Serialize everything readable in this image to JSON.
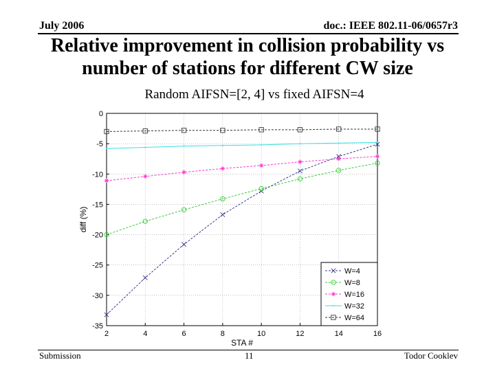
{
  "header": {
    "date": "July 2006",
    "doc_id": "doc.: IEEE 802.11-06/0657r3"
  },
  "slide": {
    "title_line1": "Relative improvement in collision probability vs",
    "title_line2": "number of stations for different CW size",
    "subtitle": "Random AIFSN=[2, 4] vs fixed AIFSN=4"
  },
  "footer": {
    "left": "Submission",
    "page": "11",
    "author": "Todor Cooklev"
  },
  "chart_data": {
    "type": "line",
    "xlabel": "STA #",
    "ylabel": "diff (%)",
    "xlim": [
      2,
      16
    ],
    "ylim": [
      -35,
      0
    ],
    "xticks": [
      2,
      4,
      6,
      8,
      10,
      12,
      14,
      16
    ],
    "yticks": [
      0,
      -5,
      -10,
      -15,
      -20,
      -25,
      -30,
      -35
    ],
    "grid": true,
    "legend_position": "bottom-right",
    "x": [
      2,
      4,
      6,
      8,
      10,
      12,
      14,
      16
    ],
    "series": [
      {
        "name": "W=4",
        "color": "#3a3a8c",
        "marker": "x",
        "values": [
          -33.2,
          -27.1,
          -21.6,
          -16.7,
          -12.8,
          -9.5,
          -7.1,
          -5.1
        ]
      },
      {
        "name": "W=8",
        "color": "#33cc33",
        "marker": "circle",
        "values": [
          -20.0,
          -17.8,
          -15.9,
          -14.1,
          -12.4,
          -10.8,
          -9.4,
          -8.2
        ]
      },
      {
        "name": "W=16",
        "color": "#ff33cc",
        "marker": "star",
        "values": [
          -11.1,
          -10.4,
          -9.7,
          -9.1,
          -8.6,
          -8.0,
          -7.5,
          -7.1
        ]
      },
      {
        "name": "W=32",
        "color": "#33e0e8",
        "marker": "point",
        "values": [
          -5.8,
          -5.6,
          -5.4,
          -5.3,
          -5.2,
          -5.0,
          -4.9,
          -4.8
        ]
      },
      {
        "name": "W=64",
        "color": "#333333",
        "marker": "square",
        "values": [
          -3.0,
          -2.9,
          -2.8,
          -2.8,
          -2.7,
          -2.7,
          -2.6,
          -2.6
        ]
      }
    ]
  }
}
